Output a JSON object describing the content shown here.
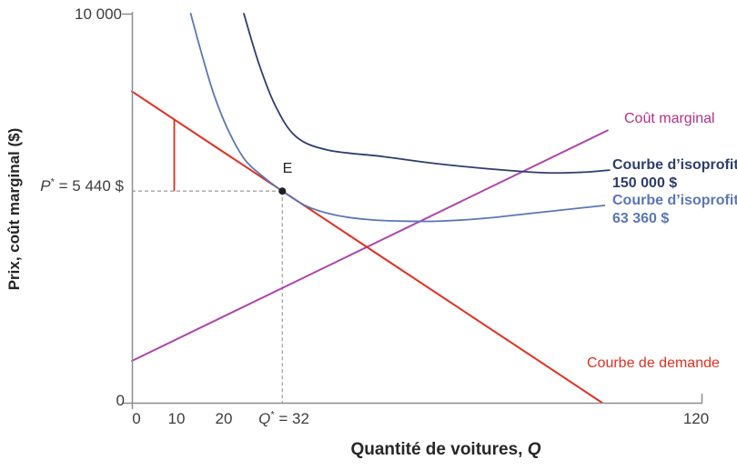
{
  "axes": {
    "y_title": "Prix, coût marginal ($)",
    "x_title_main": "Quantité de voitures, ",
    "x_title_var": "Q"
  },
  "labels": {
    "marginal_cost": "Coût marginal",
    "isoprofit_high_line1": "Courbe d’isoprofit :",
    "isoprofit_high_line2": "150 000 $",
    "isoprofit_low_line1": "Courbe d’isoprofit :",
    "isoprofit_low_line2": "63 360 $",
    "demand": "Courbe de demande",
    "point_e": "E"
  },
  "annotations": {
    "p_star": {
      "var": "P",
      "sup": "*",
      "rest": " = 5 440 $"
    },
    "q_star": {
      "var": "Q",
      "sup": "*",
      "rest": " = 32"
    }
  },
  "colors": {
    "demand": "#e1301f",
    "marginal_cost_line": "#ad44ad",
    "marginal_cost_label": "#b33189",
    "isoprofit_high": "#2e3d6c",
    "isoprofit_low": "#5b76b7",
    "axis": "#8b8d90",
    "guide": "#a3a5a8",
    "tick_text": "#3d3d3f",
    "point": "#1f1f1f"
  },
  "chart_data": {
    "type": "line",
    "title": "",
    "xlabel": "Quantité de voitures, Q",
    "ylabel": "Prix, coût marginal ($)",
    "xlim": [
      0,
      120
    ],
    "ylim": [
      0,
      10000
    ],
    "grid": false,
    "legend": "inline-labels",
    "x_tick_values": [
      0,
      10,
      20,
      32,
      120
    ],
    "x_tick_labels": [
      "0",
      "10",
      "20",
      "Q* = 32",
      "120"
    ],
    "y_tick_values": [
      0,
      10000
    ],
    "y_tick_labels": [
      "0",
      "10 000"
    ],
    "guides": {
      "p_star": 5440,
      "q_star": 32
    },
    "point_E": {
      "q": 32,
      "p": 5440,
      "label": "E"
    },
    "series": [
      {
        "name": "Courbe de demande",
        "color": "#e1301f",
        "width": 2,
        "smooth": false,
        "points": [
          [
            0,
            8000
          ],
          [
            100,
            0
          ]
        ]
      },
      {
        "name": "Coût marginal",
        "color": "#ad44ad",
        "width": 2,
        "smooth": false,
        "points": [
          [
            0,
            1075
          ],
          [
            101.2,
            7000
          ]
        ]
      },
      {
        "name": "Courbe d’isoprofit : 150 000 $",
        "color": "#2e3d6c",
        "width": 1.8,
        "smooth": true,
        "points": [
          [
            23.8,
            10000
          ],
          [
            27,
            8715
          ],
          [
            30.4,
            7660
          ],
          [
            34.8,
            6850
          ],
          [
            41.6,
            6495
          ],
          [
            53.2,
            6330
          ],
          [
            64.8,
            6145
          ],
          [
            76.5,
            6005
          ],
          [
            88,
            5910
          ],
          [
            96,
            5925
          ],
          [
            101.6,
            5980
          ]
        ]
      },
      {
        "name": "Courbe d’isoprofit : 63 360 $",
        "color": "#5b76b7",
        "width": 1.8,
        "smooth": true,
        "points": [
          [
            12.5,
            10000
          ],
          [
            15,
            8900
          ],
          [
            17.5,
            7900
          ],
          [
            20.5,
            7000
          ],
          [
            24,
            6250
          ],
          [
            28,
            5800
          ],
          [
            32,
            5440
          ],
          [
            37,
            5060
          ],
          [
            43,
            4830
          ],
          [
            50,
            4710
          ],
          [
            58,
            4665
          ],
          [
            66,
            4670
          ],
          [
            75,
            4740
          ],
          [
            85,
            4870
          ],
          [
            100.5,
            5070
          ]
        ]
      },
      {
        "name": "segment-demande-vers-p-star",
        "color": "#e1301f",
        "width": 1.8,
        "smooth": false,
        "points": [
          [
            9,
            7280
          ],
          [
            9,
            5440
          ]
        ]
      }
    ]
  }
}
